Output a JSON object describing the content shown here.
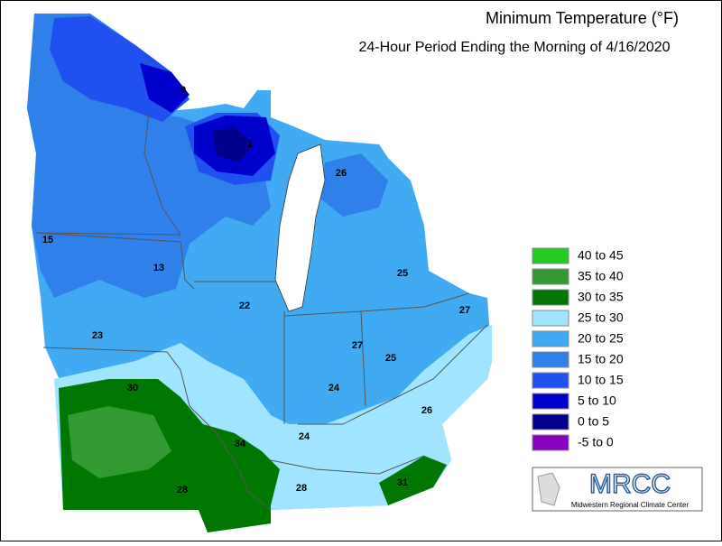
{
  "header": {
    "title": "Minimum Temperature (°F)",
    "subtitle": "24-Hour Period Ending the Morning of 4/16/2020"
  },
  "legend": [
    {
      "label": "40 to 45",
      "color": "#22cc22"
    },
    {
      "label": "35 to 40",
      "color": "#339933"
    },
    {
      "label": "30 to 35",
      "color": "#007700"
    },
    {
      "label": "25 to 30",
      "color": "#a0e4ff"
    },
    {
      "label": "20 to 25",
      "color": "#40aaf2"
    },
    {
      "label": "15 to 20",
      "color": "#2f80e8"
    },
    {
      "label": "10 to 15",
      "color": "#2050f0"
    },
    {
      "label": "5 to 10",
      "color": "#0000cc"
    },
    {
      "label": "0 to 5",
      "color": "#00008a"
    },
    {
      "label": "-5 to 0",
      "color": "#8a00c0"
    }
  ],
  "station_labels": [
    9,
    1,
    26,
    15,
    13,
    25,
    22,
    27,
    27,
    23,
    25,
    30,
    24,
    26,
    34,
    24,
    28,
    28,
    31
  ],
  "logo": {
    "name": "MRCC",
    "caption": "Midwestern Regional Climate Center"
  }
}
